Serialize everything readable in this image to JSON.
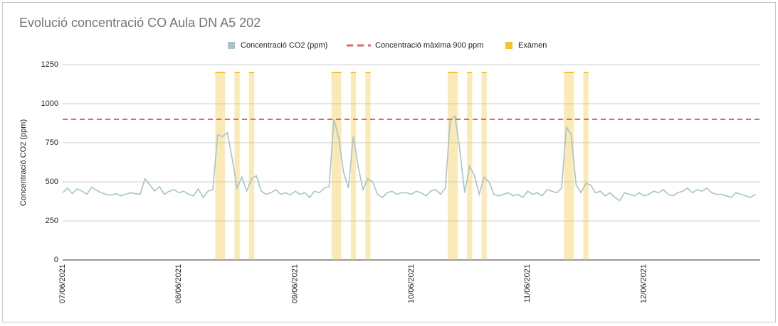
{
  "chart_data": {
    "type": "line",
    "title": "Evolució concentració CO Aula DN A5 202",
    "y_label": "Concentració CO2 (ppm)",
    "ylim": [
      0,
      1250
    ],
    "yticks": [
      0,
      250,
      500,
      750,
      1000,
      1250
    ],
    "grid": true,
    "legend": "top",
    "categories": [
      "07/06/2021",
      null,
      null,
      null,
      null,
      null,
      null,
      null,
      null,
      null,
      null,
      null,
      null,
      null,
      null,
      null,
      null,
      null,
      null,
      null,
      null,
      null,
      null,
      null,
      "08/06/2021",
      null,
      null,
      null,
      null,
      null,
      null,
      null,
      null,
      null,
      null,
      null,
      null,
      null,
      null,
      null,
      null,
      null,
      null,
      null,
      null,
      null,
      null,
      null,
      "09/06/2021",
      null,
      null,
      null,
      null,
      null,
      null,
      null,
      null,
      null,
      null,
      null,
      null,
      null,
      null,
      null,
      null,
      null,
      null,
      null,
      null,
      null,
      null,
      null,
      "10/06/2021",
      null,
      null,
      null,
      null,
      null,
      null,
      null,
      null,
      null,
      null,
      null,
      null,
      null,
      null,
      null,
      null,
      null,
      null,
      null,
      null,
      null,
      null,
      null,
      "11/06/2021",
      null,
      null,
      null,
      null,
      null,
      null,
      null,
      null,
      null,
      null,
      null,
      null,
      null,
      null,
      null,
      null,
      null,
      null,
      null,
      null,
      null,
      null,
      null,
      "12/06/2021",
      null,
      null,
      null,
      null,
      null,
      null,
      null,
      null,
      null,
      null,
      null,
      null,
      null,
      null,
      null,
      null,
      null,
      null,
      null,
      null,
      null,
      null,
      null
    ],
    "series": [
      {
        "name": "Concentració CO2 (ppm)",
        "type": "line",
        "color": "#a7c4c9",
        "values": [
          430,
          460,
          425,
          455,
          440,
          420,
          465,
          445,
          430,
          420,
          415,
          425,
          410,
          420,
          430,
          425,
          420,
          520,
          480,
          440,
          470,
          420,
          440,
          450,
          430,
          440,
          420,
          410,
          455,
          400,
          440,
          450,
          800,
          790,
          815,
          650,
          460,
          530,
          440,
          520,
          540,
          440,
          420,
          430,
          450,
          420,
          430,
          415,
          440,
          420,
          430,
          400,
          440,
          430,
          460,
          470,
          900,
          780,
          560,
          460,
          790,
          600,
          450,
          520,
          500,
          420,
          400,
          430,
          440,
          420,
          430,
          430,
          420,
          440,
          430,
          410,
          440,
          450,
          420,
          460,
          890,
          920,
          700,
          430,
          600,
          540,
          420,
          530,
          500,
          420,
          410,
          420,
          430,
          410,
          420,
          400,
          440,
          420,
          430,
          410,
          450,
          440,
          430,
          460,
          850,
          800,
          480,
          430,
          490,
          480,
          430,
          440,
          410,
          430,
          400,
          380,
          430,
          420,
          410,
          430,
          410,
          420,
          440,
          430,
          450,
          420,
          410,
          430,
          440,
          460,
          430,
          450,
          440,
          460,
          430,
          420,
          420,
          410,
          400,
          430,
          420,
          410,
          400,
          420
        ]
      },
      {
        "name": "Concentració màxima 900 ppm",
        "type": "reference",
        "color": "#e06666",
        "dashed": true,
        "value": 900
      },
      {
        "name": "Exàmen",
        "type": "bar",
        "color": "#f1c232",
        "values": [
          null,
          null,
          null,
          null,
          null,
          null,
          null,
          null,
          null,
          null,
          null,
          null,
          null,
          null,
          null,
          null,
          null,
          null,
          null,
          null,
          null,
          null,
          null,
          null,
          null,
          null,
          null,
          null,
          null,
          null,
          null,
          null,
          1200,
          1200,
          null,
          null,
          1200,
          null,
          null,
          1200,
          null,
          null,
          null,
          null,
          null,
          null,
          null,
          null,
          null,
          null,
          null,
          null,
          null,
          null,
          null,
          null,
          1200,
          1200,
          null,
          null,
          1200,
          null,
          null,
          1200,
          null,
          null,
          null,
          null,
          null,
          null,
          null,
          null,
          null,
          null,
          null,
          null,
          null,
          null,
          null,
          null,
          1200,
          1200,
          null,
          null,
          1200,
          null,
          null,
          1200,
          null,
          null,
          null,
          null,
          null,
          null,
          null,
          null,
          null,
          null,
          null,
          null,
          null,
          null,
          null,
          null,
          1200,
          1200,
          null,
          null,
          1200,
          null,
          null,
          null,
          null,
          null,
          null,
          null,
          null,
          null,
          null,
          null,
          null,
          null,
          null,
          null,
          null,
          null,
          null,
          null,
          null,
          null,
          null,
          null,
          null,
          null,
          null,
          null,
          null,
          null,
          null,
          null,
          null,
          null,
          null,
          null
        ]
      }
    ]
  }
}
